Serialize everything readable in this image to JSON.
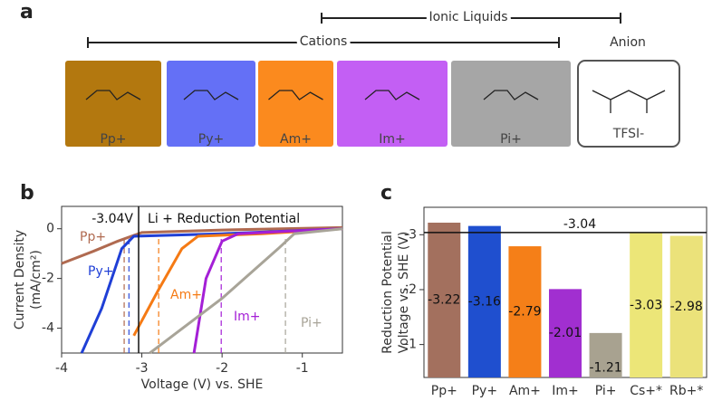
{
  "panel_a": {
    "letter": "a",
    "ionic_liquids": "Ionic Liquids",
    "cations": "Cations",
    "anion": "Anion",
    "boxes": [
      {
        "label": "Pp+",
        "color": "#b3780f"
      },
      {
        "label": "Py+",
        "color": "#6470f6"
      },
      {
        "label": "Am+",
        "color": "#fb8a1e"
      },
      {
        "label": "Im+",
        "color": "#c35ff4"
      },
      {
        "label": "Pi+",
        "color": "#a6a6a6"
      },
      {
        "label": "TFSI-",
        "color": "#ffffff"
      }
    ]
  },
  "chart_data": [
    {
      "type": "line",
      "panel": "b",
      "xlabel": "Voltage (V) vs. SHE",
      "ylabel": [
        "Current Density",
        "(mA/cm²)"
      ],
      "xlim": [
        -4,
        -0.5
      ],
      "ylim": [
        -5,
        0.9
      ],
      "xticks": [
        -4,
        -3,
        -2,
        -1
      ],
      "yticks": [
        -4,
        -2,
        0
      ],
      "reference_line": -3.04,
      "reference_label": "-3.04V",
      "annotation": "Li + Reduction Potential",
      "series": [
        {
          "name": "Pp+",
          "color": "#b06a50",
          "onset": -3.22,
          "x": [
            -4,
            -3.6,
            -3.3,
            -3.0,
            -2.0,
            -0.5
          ],
          "values": [
            -1.4,
            -0.9,
            -0.5,
            -0.15,
            -0.05,
            0.05
          ]
        },
        {
          "name": "Py+",
          "color": "#1f3fd6",
          "onset": -3.16,
          "x": [
            -3.75,
            -3.5,
            -3.25,
            -3.1,
            -2.0,
            -0.5
          ],
          "values": [
            -5,
            -3.2,
            -0.8,
            -0.3,
            -0.2,
            0
          ]
        },
        {
          "name": "Am+",
          "color": "#f57a14",
          "onset": -2.79,
          "x": [
            -3.1,
            -2.8,
            -2.5,
            -2.3,
            -1.5,
            -0.5
          ],
          "values": [
            -4.3,
            -2.5,
            -0.8,
            -0.3,
            -0.2,
            0
          ]
        },
        {
          "name": "Im+",
          "color": "#a41fd6",
          "onset": -2.01,
          "x": [
            -2.35,
            -2.2,
            -2.0,
            -1.8,
            -1.2,
            -0.5
          ],
          "values": [
            -5,
            -2,
            -0.5,
            -0.2,
            -0.1,
            0
          ]
        },
        {
          "name": "Pi+",
          "color": "#a8a498",
          "onset": -1.21,
          "x": [
            -2.9,
            -2.0,
            -1.3,
            -1.1,
            -0.8,
            -0.5
          ],
          "values": [
            -5,
            -2.8,
            -0.8,
            -0.2,
            -0.1,
            0
          ]
        }
      ]
    },
    {
      "type": "bar",
      "panel": "c",
      "ylabel": [
        "Reduction Potential",
        "Voltage vs. SHE (V)"
      ],
      "categories": [
        "Pp+",
        "Py+",
        "Am+",
        "Im+",
        "Pi+",
        "Cs+*",
        "Rb+*"
      ],
      "values": [
        -3.22,
        -3.16,
        -2.79,
        -2.01,
        -1.21,
        -3.03,
        -2.98
      ],
      "colors": [
        "#a3705e",
        "#1f4fcf",
        "#f57f18",
        "#a12fd0",
        "#a8a290",
        "#ece678",
        "#ebe27a"
      ],
      "ylim": [
        -0.4,
        -3.5
      ],
      "yticks": [
        -3,
        -2,
        -1
      ],
      "reference_line": -3.04
    }
  ]
}
